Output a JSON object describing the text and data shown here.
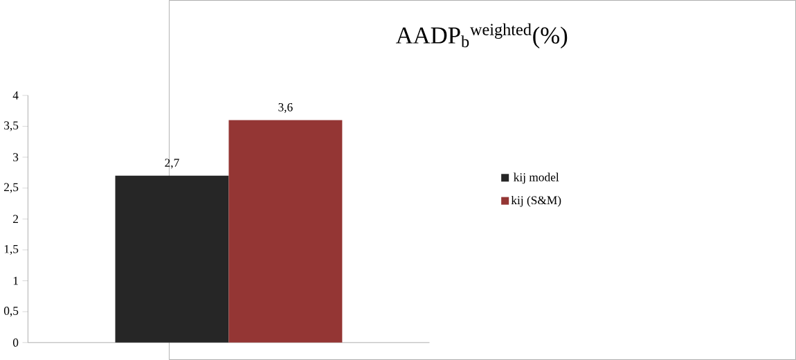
{
  "chart_data": {
    "type": "bar",
    "title": "AADP$_{b}$$^{weighted}$(%)",
    "categories": [
      null
    ],
    "series": [
      {
        "name": "kij model",
        "color": "#262626",
        "values": [
          2.7
        ],
        "value_labels": [
          "2,7"
        ]
      },
      {
        "name": "kij (S&M)",
        "color": "#943634",
        "values": [
          3.6
        ],
        "value_labels": [
          "3,6"
        ]
      }
    ],
    "ylim": [
      0,
      4
    ],
    "yticks": [
      0,
      {
        "value": 0.5,
        "label": "0,5"
      },
      1,
      {
        "value": 1.5,
        "label": "1,5"
      },
      2,
      {
        "value": 2.5,
        "label": "2,5"
      },
      3,
      {
        "value": 3.5,
        "label": "3,5"
      },
      4
    ],
    "grid": false,
    "legend": "right"
  }
}
